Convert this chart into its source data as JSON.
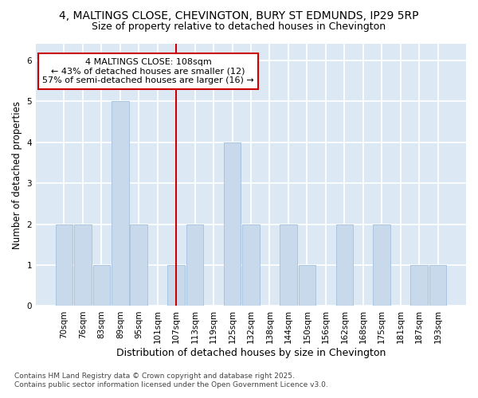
{
  "title1": "4, MALTINGS CLOSE, CHEVINGTON, BURY ST EDMUNDS, IP29 5RP",
  "title2": "Size of property relative to detached houses in Chevington",
  "xlabel": "Distribution of detached houses by size in Chevington",
  "ylabel": "Number of detached properties",
  "categories": [
    "70sqm",
    "76sqm",
    "83sqm",
    "89sqm",
    "95sqm",
    "101sqm",
    "107sqm",
    "113sqm",
    "119sqm",
    "125sqm",
    "132sqm",
    "138sqm",
    "144sqm",
    "150sqm",
    "156sqm",
    "162sqm",
    "168sqm",
    "175sqm",
    "181sqm",
    "187sqm",
    "193sqm"
  ],
  "values": [
    2,
    2,
    1,
    5,
    2,
    0,
    1,
    2,
    0,
    4,
    2,
    0,
    2,
    1,
    0,
    2,
    0,
    2,
    0,
    1,
    1
  ],
  "bar_color": "#c9d9ec",
  "bar_edge_color": "#aac4e0",
  "property_line_index": 6,
  "property_line_color": "#cc0000",
  "ylim": [
    0,
    6.4
  ],
  "yticks": [
    0,
    1,
    2,
    3,
    4,
    5,
    6
  ],
  "annotation_text": "4 MALTINGS CLOSE: 108sqm\n← 43% of detached houses are smaller (12)\n57% of semi-detached houses are larger (16) →",
  "annotation_box_color": "#ffffff",
  "annotation_box_edge": "#cc0000",
  "background_color": "#ffffff",
  "plot_bg_color": "#dde8f5",
  "grid_color": "#ffffff",
  "footer": "Contains HM Land Registry data © Crown copyright and database right 2025.\nContains public sector information licensed under the Open Government Licence v3.0.",
  "title_fontsize": 10,
  "subtitle_fontsize": 9,
  "tick_fontsize": 7.5,
  "xlabel_fontsize": 9,
  "ylabel_fontsize": 8.5,
  "annotation_fontsize": 8,
  "footer_fontsize": 6.5
}
